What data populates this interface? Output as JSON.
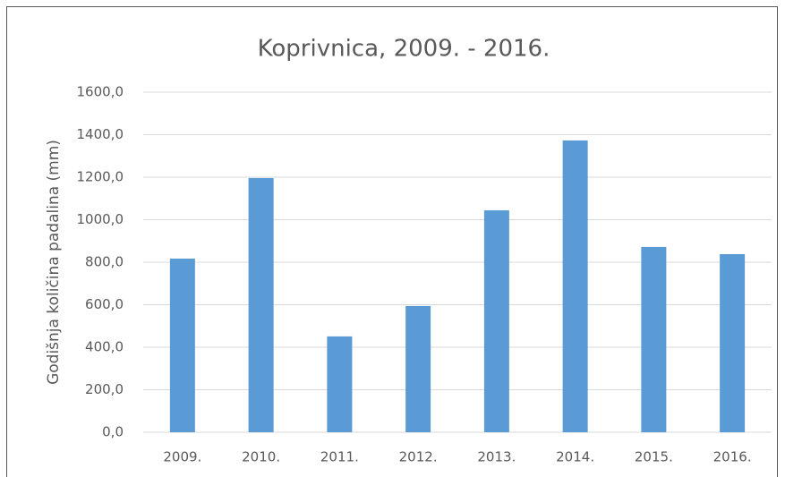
{
  "chart_data": {
    "type": "bar",
    "title": "Koprivnica, 2009. - 2016.",
    "y_label": "Godišnja količina padalina (mm)",
    "categories": [
      "2009.",
      "2010.",
      "2011.",
      "2012.",
      "2013.",
      "2014.",
      "2015.",
      "2016."
    ],
    "values": [
      817,
      1196,
      451,
      594,
      1044,
      1373,
      872,
      838
    ],
    "color": "#5b9bd5",
    "ylim": [
      0,
      1600
    ],
    "yticks": [
      {
        "value": 0,
        "label": "0,0"
      },
      {
        "value": 200,
        "label": "200,0"
      },
      {
        "value": 400,
        "label": "400,0"
      },
      {
        "value": 600,
        "label": "600,0"
      },
      {
        "value": 800,
        "label": "800,0"
      },
      {
        "value": 1000,
        "label": "1000,0"
      },
      {
        "value": 1200,
        "label": "1200,0"
      },
      {
        "value": 1400,
        "label": "1400,0"
      },
      {
        "value": 1600,
        "label": "1600,0"
      }
    ],
    "grid": true
  }
}
